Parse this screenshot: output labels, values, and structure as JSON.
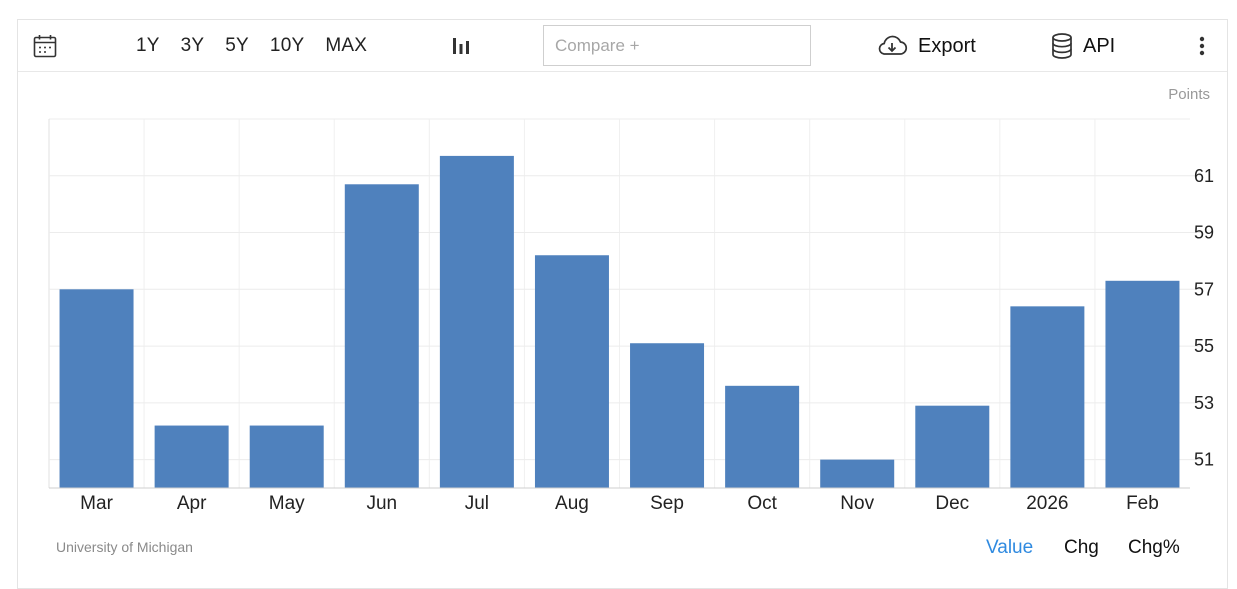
{
  "toolbar": {
    "calendar_icon": "calendar-icon",
    "ranges": [
      "1Y",
      "3Y",
      "5Y",
      "10Y",
      "MAX"
    ],
    "chart_type_icon": "bar-chart-icon",
    "compare_placeholder": "Compare +",
    "export_label": "Export",
    "export_icon": "cloud-download-icon",
    "api_label": "API",
    "api_icon": "database-icon",
    "menu_icon": "vertical-dots-icon"
  },
  "chart_data": {
    "type": "bar",
    "unit_label": "Points",
    "categories": [
      "Mar",
      "Apr",
      "May",
      "Jun",
      "Jul",
      "Aug",
      "Sep",
      "Oct",
      "Nov",
      "Dec",
      "2026",
      "Feb"
    ],
    "values": [
      57.0,
      52.2,
      52.2,
      60.7,
      61.7,
      58.2,
      55.1,
      53.6,
      51.0,
      52.9,
      56.4,
      57.3
    ],
    "ylim": [
      50,
      63
    ],
    "yticks": [
      51,
      53,
      55,
      57,
      59,
      61
    ],
    "y_axis_position": "right",
    "grid": true,
    "bar_color": "#4f81bd"
  },
  "footer": {
    "source": "University of Michigan",
    "modes": [
      "Value",
      "Chg",
      "Chg%"
    ],
    "active_mode": "Value"
  }
}
